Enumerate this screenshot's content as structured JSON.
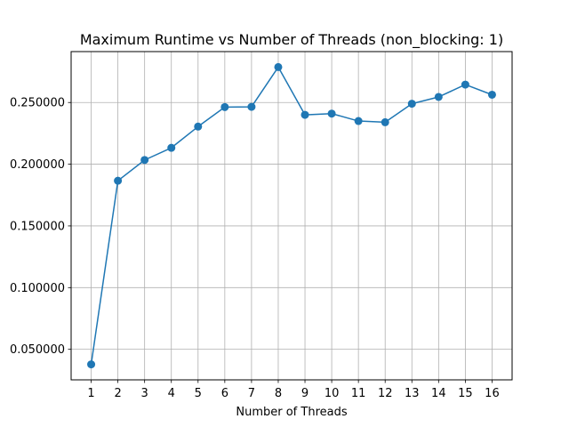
{
  "chart_data": {
    "type": "line",
    "title": "Maximum Runtime vs Number of Threads (non_blocking: 1)",
    "xlabel": "Number of Threads",
    "ylabel": "",
    "x": [
      1,
      2,
      3,
      4,
      5,
      6,
      7,
      8,
      9,
      10,
      11,
      12,
      13,
      14,
      15,
      16
    ],
    "series": [
      {
        "values": [
          0.0378,
          0.1866,
          0.2034,
          0.2133,
          0.2305,
          0.2463,
          0.2465,
          0.2787,
          0.24,
          0.241,
          0.235,
          0.234,
          0.249,
          0.2545,
          0.2645,
          0.2563
        ]
      }
    ],
    "xlim": [
      0.25,
      16.75
    ],
    "ylim": [
      0.025245,
      0.291255
    ],
    "xticks": [
      1,
      2,
      3,
      4,
      5,
      6,
      7,
      8,
      9,
      10,
      11,
      12,
      13,
      14,
      15,
      16
    ],
    "yticks": [
      0.05,
      0.1,
      0.15,
      0.2,
      0.25
    ],
    "ytick_labels": [
      "0.050000",
      "0.100000",
      "0.150000",
      "0.200000",
      "0.250000"
    ],
    "grid": true,
    "legend": "none",
    "colors": {
      "line": "#1f77b4",
      "grid": "#b0b0b0",
      "axes": "#000000"
    }
  }
}
